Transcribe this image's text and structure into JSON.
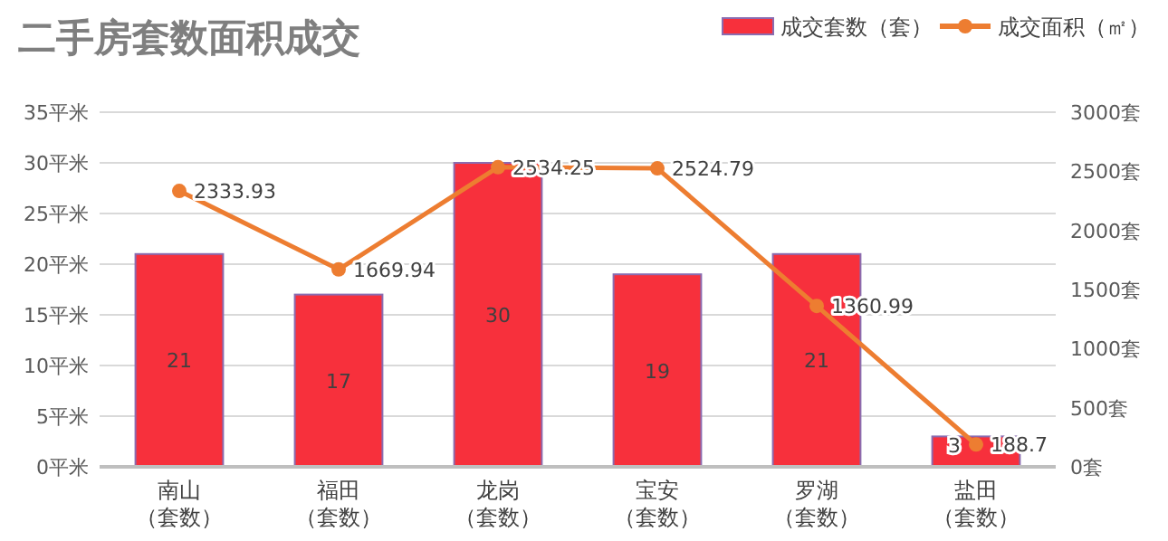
{
  "chart_data": {
    "type": "bar",
    "title": "二手房套数面积成交",
    "categories": [
      "南山（套数）",
      "福田（套数）",
      "龙岗（套数）",
      "宝安（套数）",
      "罗湖（套数）",
      "盐田（套数）"
    ],
    "series": [
      {
        "name": "成交套数（套）",
        "color": "#f7303c",
        "values": [
          21,
          17,
          30,
          19,
          21,
          3
        ]
      },
      {
        "name": "成交面积（㎡）",
        "type": "line",
        "axis": "y2",
        "color": "#ed7d31",
        "values": [
          2333.93,
          1669.94,
          2534.25,
          2524.79,
          1360.99,
          188.7
        ]
      }
    ],
    "ylim": [
      0,
      35
    ],
    "yticks": [
      {
        "value": 0,
        "label": "0平米"
      },
      {
        "value": 5,
        "label": "5平米"
      },
      {
        "value": 10,
        "label": "10平米"
      },
      {
        "value": 15,
        "label": "15平米"
      },
      {
        "value": 20,
        "label": "20平米"
      },
      {
        "value": 25,
        "label": "25平米"
      },
      {
        "value": 30,
        "label": "30平米"
      },
      {
        "value": 35,
        "label": "35平米"
      }
    ],
    "y2lim": [
      0,
      3000
    ],
    "y2ticks": [
      {
        "value": 0,
        "label": "0套"
      },
      {
        "value": 500,
        "label": "500套"
      },
      {
        "value": 1000,
        "label": "1000套"
      },
      {
        "value": 1500,
        "label": "1500套"
      },
      {
        "value": 2000,
        "label": "2000套"
      },
      {
        "value": 2500,
        "label": "2500套"
      },
      {
        "value": 3000,
        "label": "3000套"
      }
    ],
    "grid": "y",
    "legend": "top right",
    "marker": "circle",
    "line_style": "solid",
    "data_labels": true
  }
}
